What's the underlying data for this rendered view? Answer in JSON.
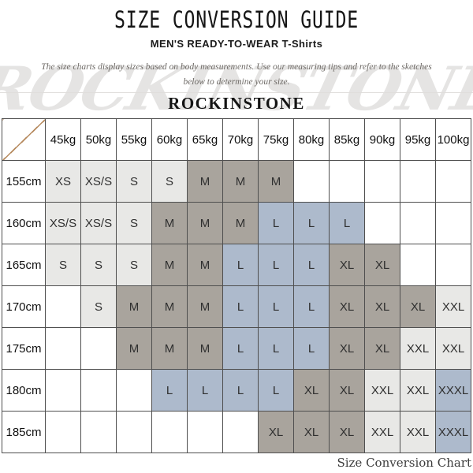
{
  "header": {
    "title": "SIZE CONVERSION GUIDE",
    "subtitle": "MEN'S READY-TO-WEAR T-Shirts",
    "description_line1": "The size charts display sizes based on body measurements. Use our measuring tips and refer to the sketches",
    "description_line2": "below to determine your size.",
    "brand": "ROCKINSTONE",
    "watermark": "ROCKINSTONE"
  },
  "chart_data": {
    "type": "table",
    "title": "SIZE CONVERSION GUIDE",
    "corner_label": "",
    "weight_headers": [
      "45kg",
      "50kg",
      "55kg",
      "60kg",
      "65kg",
      "70kg",
      "75kg",
      "80kg",
      "85kg",
      "90kg",
      "95kg",
      "100kg"
    ],
    "rows": [
      {
        "height": "155cm",
        "cells": [
          {
            "t": "XS",
            "c": "g"
          },
          {
            "t": "XS/S",
            "c": "g"
          },
          {
            "t": "S",
            "c": "g"
          },
          {
            "t": "S",
            "c": "g"
          },
          {
            "t": "M",
            "c": "u"
          },
          {
            "t": "M",
            "c": "u"
          },
          {
            "t": "M",
            "c": "u"
          },
          {
            "t": "",
            "c": "w"
          },
          {
            "t": "",
            "c": "w"
          },
          {
            "t": "",
            "c": "w"
          },
          {
            "t": "",
            "c": "w"
          },
          {
            "t": "",
            "c": "w"
          }
        ]
      },
      {
        "height": "160cm",
        "cells": [
          {
            "t": "XS/S",
            "c": "g"
          },
          {
            "t": "XS/S",
            "c": "g"
          },
          {
            "t": "S",
            "c": "g"
          },
          {
            "t": "M",
            "c": "u"
          },
          {
            "t": "M",
            "c": "u"
          },
          {
            "t": "M",
            "c": "u"
          },
          {
            "t": "L",
            "c": "b"
          },
          {
            "t": "L",
            "c": "b"
          },
          {
            "t": "L",
            "c": "b"
          },
          {
            "t": "",
            "c": "w"
          },
          {
            "t": "",
            "c": "w"
          },
          {
            "t": "",
            "c": "w"
          }
        ]
      },
      {
        "height": "165cm",
        "cells": [
          {
            "t": "S",
            "c": "g"
          },
          {
            "t": "S",
            "c": "g"
          },
          {
            "t": "S",
            "c": "g"
          },
          {
            "t": "M",
            "c": "u"
          },
          {
            "t": "M",
            "c": "u"
          },
          {
            "t": "L",
            "c": "b"
          },
          {
            "t": "L",
            "c": "b"
          },
          {
            "t": "L",
            "c": "b"
          },
          {
            "t": "XL",
            "c": "u"
          },
          {
            "t": "XL",
            "c": "u"
          },
          {
            "t": "",
            "c": "w"
          },
          {
            "t": "",
            "c": "w"
          }
        ]
      },
      {
        "height": "170cm",
        "cells": [
          {
            "t": "",
            "c": "w"
          },
          {
            "t": "S",
            "c": "g"
          },
          {
            "t": "M",
            "c": "u"
          },
          {
            "t": "M",
            "c": "u"
          },
          {
            "t": "M",
            "c": "u"
          },
          {
            "t": "L",
            "c": "b"
          },
          {
            "t": "L",
            "c": "b"
          },
          {
            "t": "L",
            "c": "b"
          },
          {
            "t": "XL",
            "c": "u"
          },
          {
            "t": "XL",
            "c": "u"
          },
          {
            "t": "XL",
            "c": "u"
          },
          {
            "t": "XXL",
            "c": "g"
          }
        ]
      },
      {
        "height": "175cm",
        "cells": [
          {
            "t": "",
            "c": "w"
          },
          {
            "t": "",
            "c": "w"
          },
          {
            "t": "M",
            "c": "u"
          },
          {
            "t": "M",
            "c": "u"
          },
          {
            "t": "M",
            "c": "u"
          },
          {
            "t": "L",
            "c": "b"
          },
          {
            "t": "L",
            "c": "b"
          },
          {
            "t": "L",
            "c": "b"
          },
          {
            "t": "XL",
            "c": "u"
          },
          {
            "t": "XL",
            "c": "u"
          },
          {
            "t": "XXL",
            "c": "g"
          },
          {
            "t": "XXL",
            "c": "g"
          }
        ]
      },
      {
        "height": "180cm",
        "cells": [
          {
            "t": "",
            "c": "w"
          },
          {
            "t": "",
            "c": "w"
          },
          {
            "t": "",
            "c": "w"
          },
          {
            "t": "L",
            "c": "b"
          },
          {
            "t": "L",
            "c": "b"
          },
          {
            "t": "L",
            "c": "b"
          },
          {
            "t": "L",
            "c": "b"
          },
          {
            "t": "XL",
            "c": "u"
          },
          {
            "t": "XL",
            "c": "u"
          },
          {
            "t": "XXL",
            "c": "g"
          },
          {
            "t": "XXL",
            "c": "g"
          },
          {
            "t": "XXXL",
            "c": "b"
          }
        ]
      },
      {
        "height": "185cm",
        "cells": [
          {
            "t": "",
            "c": "w"
          },
          {
            "t": "",
            "c": "w"
          },
          {
            "t": "",
            "c": "w"
          },
          {
            "t": "",
            "c": "w"
          },
          {
            "t": "",
            "c": "w"
          },
          {
            "t": "",
            "c": "w"
          },
          {
            "t": "XL",
            "c": "u"
          },
          {
            "t": "XL",
            "c": "u"
          },
          {
            "t": "XL",
            "c": "u"
          },
          {
            "t": "XXL",
            "c": "g"
          },
          {
            "t": "XXL",
            "c": "g"
          },
          {
            "t": "XXXL",
            "c": "b"
          }
        ]
      }
    ],
    "colors": {
      "g": "#e8e8e6",
      "u": "#a9a49d",
      "b": "#adbacc",
      "w": "#ffffff",
      "diagonal": "#b5885c"
    },
    "legend_note": "g=light-gray, u=taupe-gray, b=blue-gray, w=empty"
  },
  "caption": "Size Conversion Chart"
}
